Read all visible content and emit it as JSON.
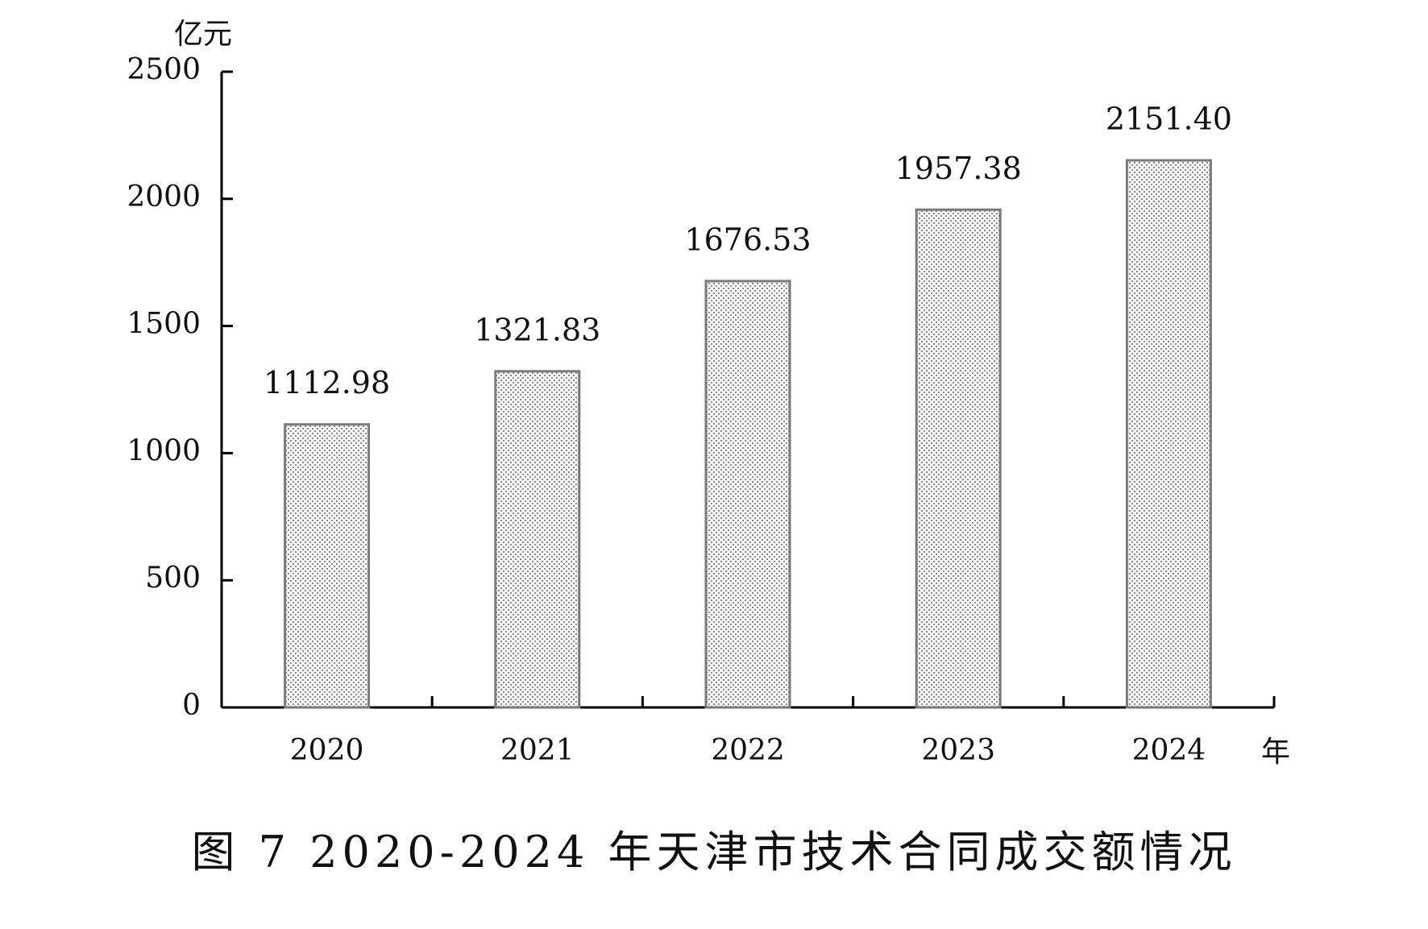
{
  "chart_data": {
    "type": "bar",
    "title": "图 7  2020-2024 年天津市技术合同成交额情况",
    "y_label": "亿元",
    "x_label": "年",
    "categories": [
      "2020",
      "2021",
      "2022",
      "2023",
      "2024"
    ],
    "values": [
      1112.98,
      1321.83,
      1676.53,
      1957.38,
      2151.4
    ],
    "value_labels": [
      "1112.98",
      "1321.83",
      "1676.53",
      "1957.38",
      "2151.40"
    ],
    "color": "#8a8a8a",
    "ylim": [
      0,
      2500
    ],
    "yticks": [
      0,
      500,
      1000,
      1500,
      2000,
      2500
    ]
  }
}
